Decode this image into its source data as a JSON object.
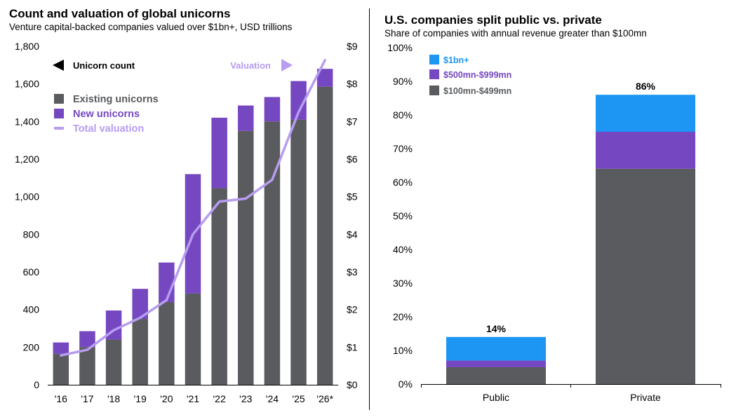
{
  "colors": {
    "existing": "#595b5e",
    "new_unicorns": "#7547c1",
    "valuation_line": "#b79cf0",
    "large_1bn": "#1c95f3",
    "mid_500": "#7547c1",
    "small_100": "#595b5e",
    "arrow_black": "#000000"
  },
  "left_panel": {
    "title": "Count and valuation of global unicorns",
    "subtitle": "Venture capital-backed companies valued over $1bn+, USD trillions"
  },
  "right_panel": {
    "title": "U.S. companies split public vs. private",
    "subtitle": "Share of companies with annual revenue greater than $100mn"
  },
  "chart_data": [
    {
      "type": "bar",
      "stacked": true,
      "title": "Count and valuation of global unicorns",
      "subtitle": "Venture capital-backed companies valued over $1bn+, USD trillions",
      "categories": [
        "'16",
        "'17",
        "'18",
        "'19",
        "'20",
        "'21",
        "'22",
        "'23",
        "'24",
        "'25",
        "'26*"
      ],
      "series": [
        {
          "name": "Existing unicorns",
          "values": [
            165,
            200,
            240,
            350,
            440,
            485,
            1045,
            1350,
            1400,
            1410,
            1585
          ]
        },
        {
          "name": "New unicorns",
          "values": [
            60,
            85,
            155,
            160,
            210,
            635,
            375,
            135,
            130,
            205,
            95
          ]
        }
      ],
      "line_series": {
        "name": "Total valuation",
        "axis": "right",
        "values": [
          0.78,
          0.93,
          1.45,
          1.78,
          2.25,
          4.0,
          4.87,
          4.95,
          5.45,
          7.25,
          8.63
        ]
      },
      "y_left": {
        "ylim": [
          0,
          1800
        ],
        "ticks": [
          "0",
          "200",
          "400",
          "600",
          "800",
          "1,000",
          "1,200",
          "1,400",
          "1,600",
          "1,800"
        ]
      },
      "y_right": {
        "ylim": [
          0,
          9
        ],
        "ticks": [
          "$0",
          "$1",
          "$2",
          "$3",
          "$4",
          "$5",
          "$6",
          "$7",
          "$8",
          "$9"
        ]
      },
      "legend": {
        "placement": "top-left",
        "items": [
          "Existing unicorns",
          "New unicorns",
          "Total valuation"
        ]
      },
      "annotations": {
        "left_axis": "Unicorn count",
        "right_axis": "Valuation"
      },
      "grid": false
    },
    {
      "type": "bar",
      "stacked": true,
      "title": "U.S. companies split public vs. private",
      "subtitle": "Share of companies with annual revenue greater than $100mn",
      "categories": [
        "Public",
        "Private"
      ],
      "series": [
        {
          "name": "$100mn-$499mn",
          "values": [
            5,
            64
          ]
        },
        {
          "name": "$500mn-$999mn",
          "values": [
            2,
            11
          ]
        },
        {
          "name": "$1bn+",
          "values": [
            7,
            11
          ]
        }
      ],
      "totals": [
        "14%",
        "86%"
      ],
      "ylim": [
        0,
        100
      ],
      "y_ticks": [
        "0%",
        "10%",
        "20%",
        "30%",
        "40%",
        "50%",
        "60%",
        "70%",
        "80%",
        "90%",
        "100%"
      ],
      "legend": {
        "placement": "top-left",
        "items": [
          "$1bn+",
          "$500mn-$999mn",
          "$100mn-$499mn"
        ]
      },
      "grid": false
    }
  ]
}
